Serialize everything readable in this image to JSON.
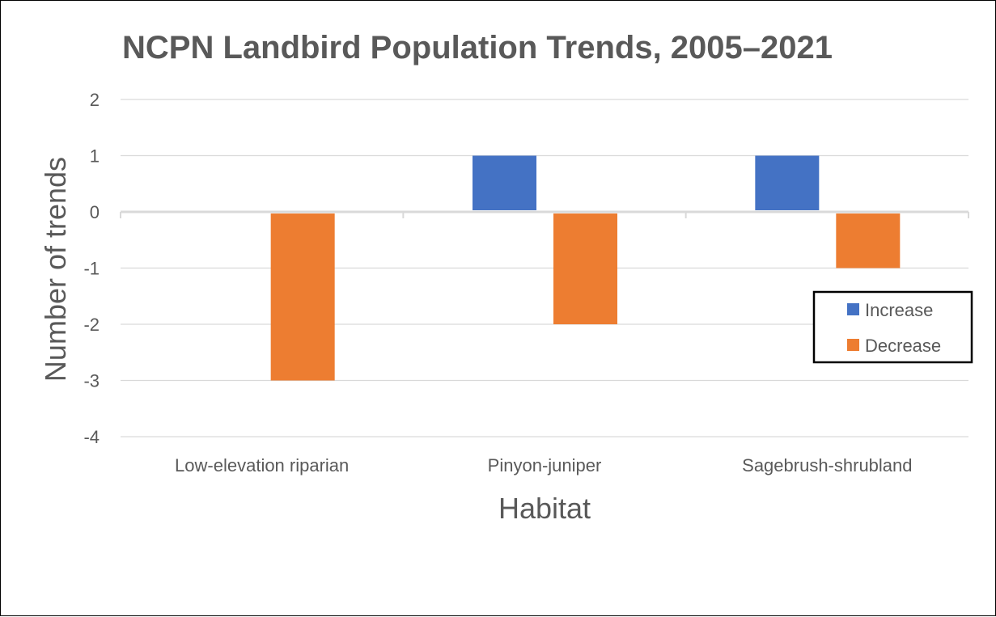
{
  "chart_data": {
    "type": "bar",
    "title": "NCPN Landbird Population Trends, 2005–2021",
    "xlabel": "Habitat",
    "ylabel": "Number of trends",
    "categories": [
      "Low-elevation riparian",
      "Pinyon-juniper",
      "Sagebrush-shrubland"
    ],
    "series": [
      {
        "name": "Increase",
        "color": "#4472C4",
        "values": [
          0,
          1,
          1
        ]
      },
      {
        "name": "Decrease",
        "color": "#ED7D31",
        "values": [
          -3,
          -2,
          -1
        ]
      }
    ],
    "ylim": [
      -4,
      2
    ],
    "yticks": [
      "2",
      "1",
      "0",
      "-1",
      "-2",
      "-3",
      "-4"
    ],
    "grid": true,
    "legend_position": "right"
  }
}
